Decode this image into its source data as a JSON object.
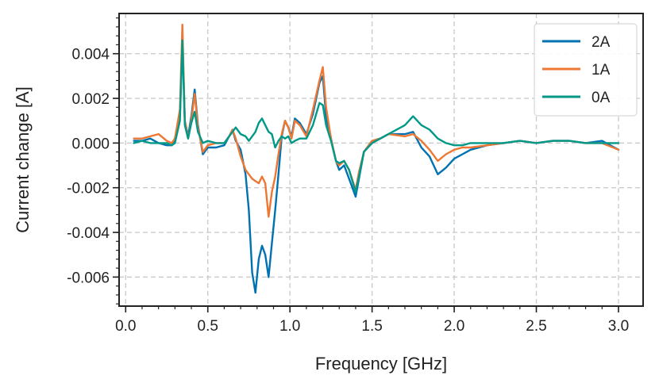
{
  "chart_data": {
    "type": "line",
    "xlabel": "Frequency [GHz]",
    "ylabel": "Current change [A]",
    "xlim": [
      -0.04,
      3.15
    ],
    "ylim": [
      -0.0073,
      0.0058
    ],
    "xticks": [
      0.0,
      0.5,
      1.0,
      1.5,
      2.0,
      2.5,
      3.0
    ],
    "xtick_labels": [
      "0.0",
      "0.5",
      "1.0",
      "1.5",
      "2.0",
      "2.5",
      "3.0"
    ],
    "yticks": [
      0.004,
      0.002,
      0.0,
      -0.002,
      -0.004,
      -0.006
    ],
    "ytick_labels": [
      "0.004",
      "0.002",
      "0.000",
      "-0.002",
      "-0.004",
      "-0.006"
    ],
    "grid": true,
    "legend_position": "top-right",
    "series": [
      {
        "name": "2A",
        "color": "#0072B2",
        "points": [
          [
            0.05,
            0.0001
          ],
          [
            0.1,
            0.0001
          ],
          [
            0.15,
            0.0002
          ],
          [
            0.2,
            0.0
          ],
          [
            0.25,
            -0.0001
          ],
          [
            0.28,
            -0.0001
          ],
          [
            0.3,
            0.0002
          ],
          [
            0.33,
            0.0012
          ],
          [
            0.345,
            0.0047
          ],
          [
            0.36,
            0.001
          ],
          [
            0.38,
            0.0003
          ],
          [
            0.4,
            0.0012
          ],
          [
            0.42,
            0.0024
          ],
          [
            0.44,
            0.0008
          ],
          [
            0.47,
            -0.0005
          ],
          [
            0.5,
            -0.0002
          ],
          [
            0.55,
            -0.0002
          ],
          [
            0.6,
            -0.0001
          ],
          [
            0.63,
            0.0003
          ],
          [
            0.65,
            0.0006
          ],
          [
            0.67,
            0.0001
          ],
          [
            0.7,
            -0.0003
          ],
          [
            0.73,
            -0.0014
          ],
          [
            0.75,
            -0.003
          ],
          [
            0.77,
            -0.0058
          ],
          [
            0.79,
            -0.0067
          ],
          [
            0.81,
            -0.0052
          ],
          [
            0.83,
            -0.0046
          ],
          [
            0.85,
            -0.005
          ],
          [
            0.87,
            -0.006
          ],
          [
            0.89,
            -0.0045
          ],
          [
            0.91,
            -0.003
          ],
          [
            0.93,
            -0.0014
          ],
          [
            0.95,
            0.0003
          ],
          [
            0.97,
            0.001
          ],
          [
            0.99,
            0.0007
          ],
          [
            1.01,
            0.0003
          ],
          [
            1.03,
            0.0011
          ],
          [
            1.06,
            0.0009
          ],
          [
            1.1,
            0.0004
          ],
          [
            1.14,
            0.0013
          ],
          [
            1.18,
            0.0027
          ],
          [
            1.2,
            0.003
          ],
          [
            1.22,
            0.0012
          ],
          [
            1.25,
            0.0002
          ],
          [
            1.28,
            -0.0008
          ],
          [
            1.3,
            -0.0012
          ],
          [
            1.33,
            -0.001
          ],
          [
            1.36,
            -0.0016
          ],
          [
            1.4,
            -0.0024
          ],
          [
            1.42,
            -0.0016
          ],
          [
            1.45,
            -0.0004
          ],
          [
            1.5,
            0.0001
          ],
          [
            1.55,
            0.0002
          ],
          [
            1.6,
            0.0004
          ],
          [
            1.7,
            0.0004
          ],
          [
            1.75,
            0.0005
          ],
          [
            1.8,
            -0.0002
          ],
          [
            1.85,
            -0.0006
          ],
          [
            1.9,
            -0.0014
          ],
          [
            1.95,
            -0.0011
          ],
          [
            2.0,
            -0.0007
          ],
          [
            2.05,
            -0.0005
          ],
          [
            2.1,
            -0.0003
          ],
          [
            2.2,
            -0.0001
          ],
          [
            2.3,
            0.0
          ],
          [
            2.4,
            0.0001
          ],
          [
            2.5,
            0.0
          ],
          [
            2.6,
            0.0001
          ],
          [
            2.7,
            0.0001
          ],
          [
            2.8,
            0.0
          ],
          [
            2.9,
            0.0001
          ],
          [
            3.0,
            -0.0003
          ]
        ]
      },
      {
        "name": "1A",
        "color": "#EE7733",
        "points": [
          [
            0.05,
            0.0002
          ],
          [
            0.1,
            0.0002
          ],
          [
            0.15,
            0.0003
          ],
          [
            0.2,
            0.0004
          ],
          [
            0.25,
            0.0001
          ],
          [
            0.28,
            0.0
          ],
          [
            0.3,
            0.0002
          ],
          [
            0.33,
            0.0015
          ],
          [
            0.345,
            0.0053
          ],
          [
            0.36,
            0.001
          ],
          [
            0.38,
            0.0002
          ],
          [
            0.4,
            0.001
          ],
          [
            0.42,
            0.0022
          ],
          [
            0.44,
            0.0007
          ],
          [
            0.47,
            -0.0004
          ],
          [
            0.5,
            -0.0001
          ],
          [
            0.55,
            0.0
          ],
          [
            0.6,
            0.0
          ],
          [
            0.63,
            0.0003
          ],
          [
            0.65,
            0.0006
          ],
          [
            0.67,
            0.0002
          ],
          [
            0.7,
            -0.0006
          ],
          [
            0.73,
            -0.0012
          ],
          [
            0.75,
            -0.0014
          ],
          [
            0.77,
            -0.0016
          ],
          [
            0.79,
            -0.0017
          ],
          [
            0.81,
            -0.0018
          ],
          [
            0.83,
            -0.0015
          ],
          [
            0.85,
            -0.0018
          ],
          [
            0.87,
            -0.0033
          ],
          [
            0.89,
            -0.0022
          ],
          [
            0.91,
            -0.0015
          ],
          [
            0.93,
            -0.0005
          ],
          [
            0.95,
            0.0004
          ],
          [
            0.97,
            0.001
          ],
          [
            0.99,
            0.0007
          ],
          [
            1.01,
            0.0002
          ],
          [
            1.03,
            0.001
          ],
          [
            1.06,
            0.0008
          ],
          [
            1.1,
            0.0003
          ],
          [
            1.14,
            0.0015
          ],
          [
            1.18,
            0.0028
          ],
          [
            1.2,
            0.0034
          ],
          [
            1.22,
            0.0016
          ],
          [
            1.25,
            0.0002
          ],
          [
            1.28,
            -0.0008
          ],
          [
            1.3,
            -0.001
          ],
          [
            1.33,
            -0.0008
          ],
          [
            1.36,
            -0.0012
          ],
          [
            1.4,
            -0.0021
          ],
          [
            1.42,
            -0.0013
          ],
          [
            1.45,
            -0.0004
          ],
          [
            1.5,
            0.0001
          ],
          [
            1.55,
            0.0002
          ],
          [
            1.6,
            0.0004
          ],
          [
            1.7,
            0.0003
          ],
          [
            1.75,
            0.0004
          ],
          [
            1.8,
            0.0001
          ],
          [
            1.85,
            -0.0003
          ],
          [
            1.9,
            -0.0008
          ],
          [
            1.95,
            -0.0005
          ],
          [
            2.0,
            -0.0003
          ],
          [
            2.05,
            -0.0002
          ],
          [
            2.1,
            -0.0002
          ],
          [
            2.2,
            -0.0001
          ],
          [
            2.3,
            0.0
          ],
          [
            2.4,
            0.0001
          ],
          [
            2.5,
            0.0
          ],
          [
            2.6,
            0.0001
          ],
          [
            2.7,
            0.0001
          ],
          [
            2.8,
            0.0
          ],
          [
            2.9,
            0.0
          ],
          [
            3.0,
            -0.0003
          ]
        ]
      },
      {
        "name": "0A",
        "color": "#009988",
        "points": [
          [
            0.05,
            0.0
          ],
          [
            0.1,
            0.0001
          ],
          [
            0.15,
            0.0
          ],
          [
            0.2,
            0.0
          ],
          [
            0.25,
            0.0
          ],
          [
            0.28,
            -0.0001
          ],
          [
            0.3,
            0.0
          ],
          [
            0.33,
            0.001
          ],
          [
            0.345,
            0.0046
          ],
          [
            0.36,
            0.0008
          ],
          [
            0.38,
            0.0002
          ],
          [
            0.4,
            0.0009
          ],
          [
            0.42,
            0.0014
          ],
          [
            0.44,
            0.0005
          ],
          [
            0.47,
            0.0
          ],
          [
            0.5,
            0.0001
          ],
          [
            0.55,
            0.0
          ],
          [
            0.6,
            0.0
          ],
          [
            0.63,
            0.0003
          ],
          [
            0.65,
            0.0005
          ],
          [
            0.67,
            0.0007
          ],
          [
            0.7,
            0.0004
          ],
          [
            0.73,
            0.0003
          ],
          [
            0.75,
            0.0001
          ],
          [
            0.77,
            0.0003
          ],
          [
            0.79,
            0.0005
          ],
          [
            0.81,
            0.0009
          ],
          [
            0.83,
            0.0011
          ],
          [
            0.85,
            0.0008
          ],
          [
            0.87,
            0.0005
          ],
          [
            0.89,
            0.0004
          ],
          [
            0.91,
            -0.0002
          ],
          [
            0.93,
            0.0001
          ],
          [
            0.95,
            0.0003
          ],
          [
            0.97,
            0.0002
          ],
          [
            0.99,
            0.0003
          ],
          [
            1.01,
            0.0
          ],
          [
            1.03,
            0.0001
          ],
          [
            1.06,
            0.0002
          ],
          [
            1.1,
            0.0002
          ],
          [
            1.14,
            0.0008
          ],
          [
            1.18,
            0.0018
          ],
          [
            1.2,
            0.0017
          ],
          [
            1.22,
            0.0008
          ],
          [
            1.25,
            0.0001
          ],
          [
            1.28,
            -0.0008
          ],
          [
            1.3,
            -0.0009
          ],
          [
            1.33,
            -0.0008
          ],
          [
            1.36,
            -0.0012
          ],
          [
            1.4,
            -0.0022
          ],
          [
            1.42,
            -0.0015
          ],
          [
            1.45,
            -0.0004
          ],
          [
            1.5,
            0.0
          ],
          [
            1.55,
            0.0002
          ],
          [
            1.6,
            0.0004
          ],
          [
            1.7,
            0.0008
          ],
          [
            1.75,
            0.0012
          ],
          [
            1.8,
            0.0008
          ],
          [
            1.85,
            0.0006
          ],
          [
            1.9,
            0.0002
          ],
          [
            1.95,
            0.0
          ],
          [
            2.0,
            -0.0001
          ],
          [
            2.05,
            -0.0001
          ],
          [
            2.1,
            0.0
          ],
          [
            2.2,
            0.0
          ],
          [
            2.3,
            0.0
          ],
          [
            2.4,
            0.0001
          ],
          [
            2.5,
            0.0
          ],
          [
            2.6,
            0.0001
          ],
          [
            2.7,
            0.0001
          ],
          [
            2.8,
            0.0
          ],
          [
            2.9,
            0.0
          ],
          [
            3.0,
            0.0
          ]
        ]
      }
    ]
  }
}
